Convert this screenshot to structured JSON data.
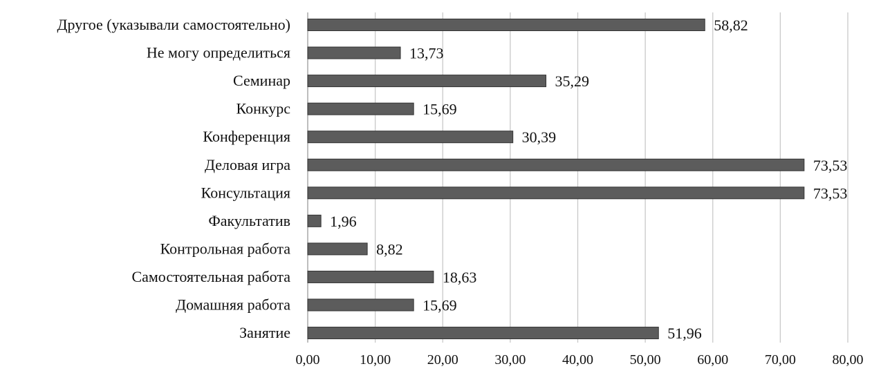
{
  "chart_data": {
    "type": "bar",
    "orientation": "horizontal",
    "title": "",
    "xlabel": "",
    "ylabel": "",
    "xlim": [
      0,
      80
    ],
    "grid": true,
    "legend": "none",
    "bar_color": "#5c5c5c",
    "categories": [
      "Другое (указывали самостоятельно)",
      "Не могу определиться",
      "Семинар",
      "Конкурс",
      "Конференция",
      "Деловая игра",
      "Консультация",
      "Факультатив",
      "Контрольная работа",
      "Самостоятельная работа",
      "Домашняя работа",
      "Занятие"
    ],
    "values": [
      58.82,
      13.73,
      35.29,
      15.69,
      30.39,
      73.53,
      73.53,
      1.96,
      8.82,
      18.63,
      15.69,
      51.96
    ],
    "value_labels": [
      "58,82",
      "13,73",
      "35,29",
      "15,69",
      "30,39",
      "73,53",
      "73,53",
      "1,96",
      "8,82",
      "18,63",
      "15,69",
      "51,96"
    ],
    "ticks": [
      0,
      10,
      20,
      30,
      40,
      50,
      60,
      70,
      80
    ],
    "tick_labels": [
      "0,00",
      "10,00",
      "20,00",
      "30,00",
      "40,00",
      "50,00",
      "60,00",
      "70,00",
      "80,00"
    ]
  }
}
